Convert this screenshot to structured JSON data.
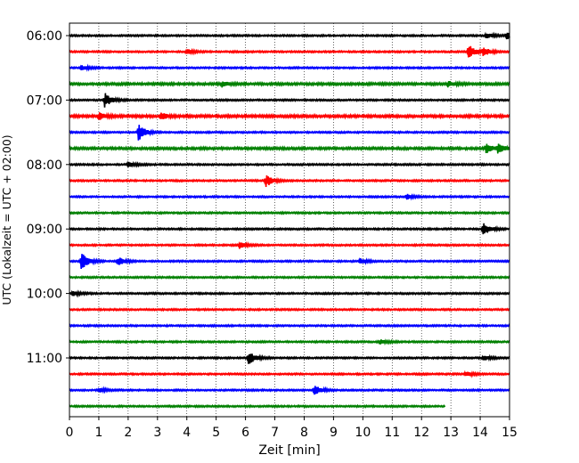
{
  "chart_data": {
    "type": "line",
    "xlabel": "Zeit  [min]",
    "ylabel": "UTC (Lokalzeit = UTC + 02:00)",
    "xlim": [
      0,
      15
    ],
    "x_ticks": [
      "0",
      "1",
      "2",
      "3",
      "4",
      "5",
      "6",
      "7",
      "8",
      "9",
      "10",
      "11",
      "12",
      "13",
      "14",
      "15"
    ],
    "y_ticks": [
      "06:00",
      "07:00",
      "08:00",
      "09:00",
      "10:00",
      "11:00"
    ],
    "grid": "vertical dotted",
    "row_minutes": 15,
    "start_time": "06:00",
    "colors": [
      "#000000",
      "#ff0000",
      "#0000ff",
      "#008000"
    ],
    "traces": [
      {
        "start": "06:00",
        "color": "#000000",
        "end_min": 15,
        "noise": 0.35,
        "events": [
          {
            "t": 14.9,
            "amp": 5
          },
          {
            "t": 14.2,
            "amp": 3
          }
        ]
      },
      {
        "start": "06:15",
        "color": "#ff0000",
        "end_min": 15,
        "noise": 0.35,
        "events": [
          {
            "t": 13.6,
            "amp": 9
          },
          {
            "t": 14.1,
            "amp": 5
          },
          {
            "t": 4.0,
            "amp": 3
          }
        ]
      },
      {
        "start": "06:30",
        "color": "#0000ff",
        "end_min": 15,
        "noise": 0.35,
        "events": [
          {
            "t": 0.4,
            "amp": 3
          }
        ]
      },
      {
        "start": "06:45",
        "color": "#008000",
        "end_min": 15,
        "noise": 0.5,
        "events": [
          {
            "t": 5.2,
            "amp": 3
          },
          {
            "t": 12.9,
            "amp": 3
          }
        ]
      },
      {
        "start": "07:00",
        "color": "#000000",
        "end_min": 15,
        "noise": 0.35,
        "events": [
          {
            "t": 1.2,
            "amp": 8
          }
        ]
      },
      {
        "start": "07:15",
        "color": "#ff0000",
        "end_min": 15,
        "noise": 0.55,
        "events": [
          {
            "t": 1.0,
            "amp": 4
          },
          {
            "t": 3.1,
            "amp": 4
          }
        ]
      },
      {
        "start": "07:30",
        "color": "#0000ff",
        "end_min": 15,
        "noise": 0.35,
        "events": [
          {
            "t": 2.35,
            "amp": 10
          }
        ]
      },
      {
        "start": "07:45",
        "color": "#008000",
        "end_min": 15,
        "noise": 0.5,
        "events": [
          {
            "t": 14.2,
            "amp": 6
          },
          {
            "t": 14.6,
            "amp": 5
          }
        ]
      },
      {
        "start": "08:00",
        "color": "#000000",
        "end_min": 15,
        "noise": 0.35,
        "events": [
          {
            "t": 2.0,
            "amp": 3
          }
        ]
      },
      {
        "start": "08:15",
        "color": "#ff0000",
        "end_min": 15,
        "noise": 0.35,
        "events": [
          {
            "t": 6.7,
            "amp": 7
          }
        ]
      },
      {
        "start": "08:30",
        "color": "#0000ff",
        "end_min": 15,
        "noise": 0.35,
        "events": [
          {
            "t": 11.5,
            "amp": 3
          }
        ]
      },
      {
        "start": "08:45",
        "color": "#008000",
        "end_min": 15,
        "noise": 0.35,
        "events": []
      },
      {
        "start": "09:00",
        "color": "#000000",
        "end_min": 15,
        "noise": 0.35,
        "events": [
          {
            "t": 14.1,
            "amp": 8
          }
        ]
      },
      {
        "start": "09:15",
        "color": "#ff0000",
        "end_min": 15,
        "noise": 0.35,
        "events": [
          {
            "t": 5.8,
            "amp": 4
          }
        ]
      },
      {
        "start": "09:30",
        "color": "#0000ff",
        "end_min": 15,
        "noise": 0.35,
        "events": [
          {
            "t": 0.4,
            "amp": 11
          },
          {
            "t": 1.65,
            "amp": 5
          },
          {
            "t": 9.9,
            "amp": 3
          }
        ]
      },
      {
        "start": "09:45",
        "color": "#008000",
        "end_min": 15,
        "noise": 0.35,
        "events": []
      },
      {
        "start": "10:00",
        "color": "#000000",
        "end_min": 15,
        "noise": 0.35,
        "events": [
          {
            "t": 0.1,
            "amp": 3
          }
        ]
      },
      {
        "start": "10:15",
        "color": "#ff0000",
        "end_min": 15,
        "noise": 0.35,
        "events": []
      },
      {
        "start": "10:30",
        "color": "#0000ff",
        "end_min": 15,
        "noise": 0.35,
        "events": []
      },
      {
        "start": "10:45",
        "color": "#008000",
        "end_min": 15,
        "noise": 0.35,
        "events": [
          {
            "t": 10.6,
            "amp": 2.5
          }
        ]
      },
      {
        "start": "11:00",
        "color": "#000000",
        "end_min": 15,
        "noise": 0.35,
        "events": [
          {
            "t": 6.1,
            "amp": 8
          },
          {
            "t": 14.1,
            "amp": 3
          }
        ]
      },
      {
        "start": "11:15",
        "color": "#ff0000",
        "end_min": 15,
        "noise": 0.35,
        "events": [
          {
            "t": 13.5,
            "amp": 3
          }
        ]
      },
      {
        "start": "11:30",
        "color": "#0000ff",
        "end_min": 15,
        "noise": 0.35,
        "events": [
          {
            "t": 8.35,
            "amp": 6
          },
          {
            "t": 1.0,
            "amp": 2.5
          }
        ]
      },
      {
        "start": "11:45",
        "color": "#008000",
        "end_min": 12.8,
        "noise": 0.35,
        "events": []
      }
    ]
  }
}
